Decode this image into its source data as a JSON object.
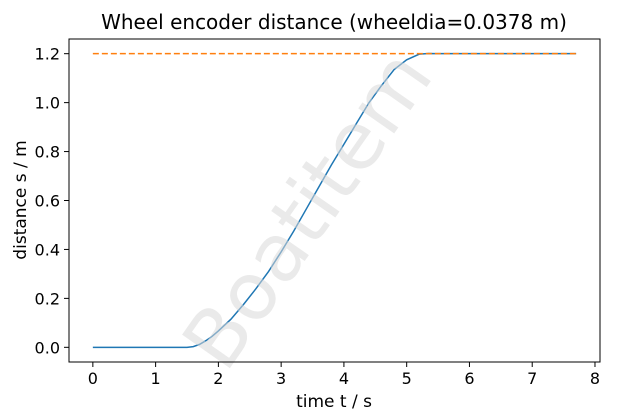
{
  "chart_data": {
    "type": "line",
    "title": "Wheel encoder distance (wheeldia=0.0378 m)",
    "xlabel": "time t / s",
    "ylabel": "distance s / m",
    "xlim": [
      -0.38,
      8.08
    ],
    "ylim": [
      -0.06,
      1.26
    ],
    "xticks": [
      0,
      1,
      2,
      3,
      4,
      5,
      6,
      7,
      8
    ],
    "yticks": [
      0.0,
      0.2,
      0.4,
      0.6,
      0.8,
      1.0,
      1.2
    ],
    "ytick_labels": [
      "0.0",
      "0.2",
      "0.4",
      "0.6",
      "0.8",
      "1.0",
      "1.2"
    ],
    "grid": false,
    "watermark": "Boatitem",
    "series": [
      {
        "style": "solid",
        "color": "#1f77b4",
        "x": [
          0,
          0.5,
          1.0,
          1.5,
          1.6,
          1.7,
          1.8,
          1.9,
          2.0,
          2.2,
          2.4,
          2.6,
          2.8,
          3.0,
          3.2,
          3.4,
          3.6,
          3.8,
          4.0,
          4.2,
          4.4,
          4.6,
          4.8,
          5.0,
          5.2,
          5.35,
          5.45,
          5.6,
          6.0,
          6.5,
          7.0,
          7.5,
          7.7
        ],
        "y": [
          0,
          0,
          0,
          0,
          0.003,
          0.012,
          0.027,
          0.045,
          0.067,
          0.115,
          0.175,
          0.24,
          0.31,
          0.39,
          0.475,
          0.565,
          0.655,
          0.745,
          0.83,
          0.915,
          1.0,
          1.07,
          1.135,
          1.175,
          1.198,
          1.201,
          1.2,
          1.2,
          1.2,
          1.2,
          1.2,
          1.2,
          1.2
        ]
      },
      {
        "style": "dashed",
        "color": "#ff7f0e",
        "x": [
          0,
          7.7
        ],
        "y": [
          1.2,
          1.2
        ]
      }
    ]
  }
}
